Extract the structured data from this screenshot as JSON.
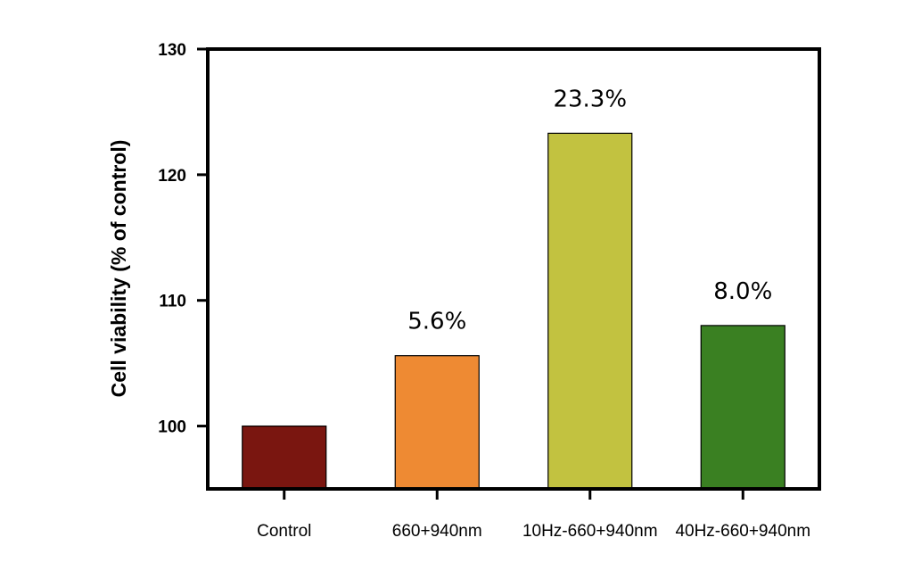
{
  "chart_data": {
    "type": "bar",
    "title": "",
    "xlabel": "",
    "ylabel": "Cell viability (% of control)",
    "ylim": [
      95,
      130
    ],
    "yticks": [
      100,
      110,
      120,
      130
    ],
    "grid": false,
    "categories": [
      "Control",
      "660+940nm",
      "10Hz-660+940nm",
      "40Hz-660+940nm"
    ],
    "values": [
      100,
      105.6,
      123.3,
      108.0
    ],
    "data_labels": [
      "",
      "5.6%",
      "23.3%",
      "8.0%"
    ],
    "colors": [
      "#7a1610",
      "#ee8a33",
      "#c2c240",
      "#3a8022"
    ]
  }
}
